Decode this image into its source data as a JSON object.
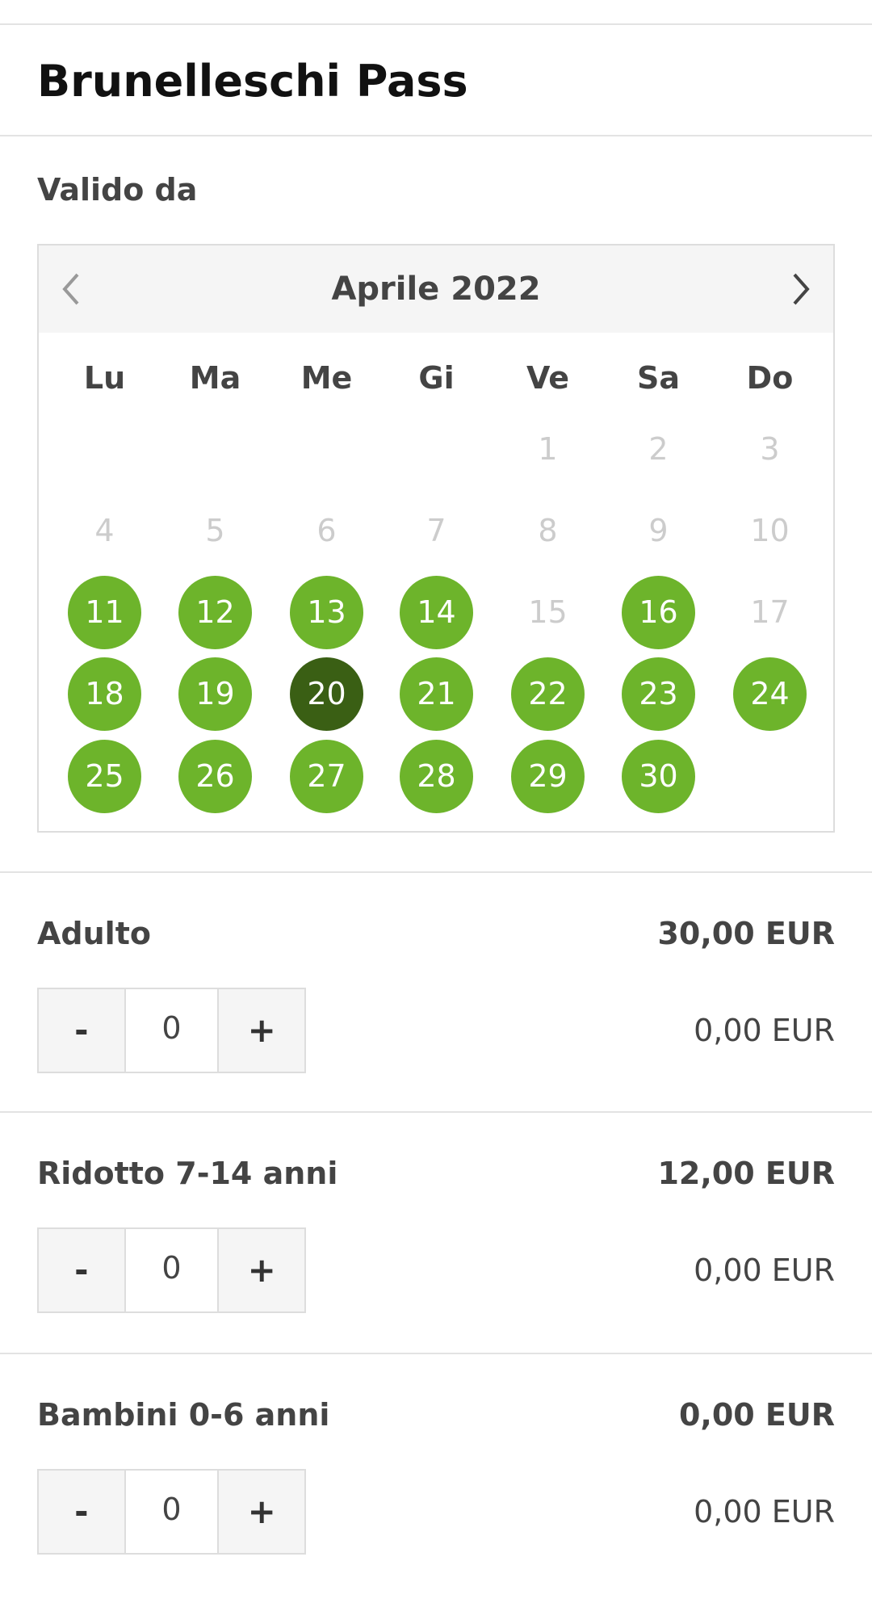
{
  "title": "Brunelleschi Pass",
  "valid_from_label": "Valido da",
  "calendar": {
    "month_label": "Aprile 2022",
    "weekdays": [
      "Lu",
      "Ma",
      "Me",
      "Gi",
      "Ve",
      "Sa",
      "Do"
    ],
    "first_weekday_offset": 4,
    "days": [
      {
        "d": "1",
        "s": "disabled"
      },
      {
        "d": "2",
        "s": "disabled"
      },
      {
        "d": "3",
        "s": "disabled"
      },
      {
        "d": "4",
        "s": "disabled"
      },
      {
        "d": "5",
        "s": "disabled"
      },
      {
        "d": "6",
        "s": "disabled"
      },
      {
        "d": "7",
        "s": "disabled"
      },
      {
        "d": "8",
        "s": "disabled"
      },
      {
        "d": "9",
        "s": "disabled"
      },
      {
        "d": "10",
        "s": "disabled"
      },
      {
        "d": "11",
        "s": "available"
      },
      {
        "d": "12",
        "s": "available"
      },
      {
        "d": "13",
        "s": "available"
      },
      {
        "d": "14",
        "s": "available"
      },
      {
        "d": "15",
        "s": "disabled"
      },
      {
        "d": "16",
        "s": "available"
      },
      {
        "d": "17",
        "s": "disabled"
      },
      {
        "d": "18",
        "s": "available"
      },
      {
        "d": "19",
        "s": "available"
      },
      {
        "d": "20",
        "s": "selected"
      },
      {
        "d": "21",
        "s": "available"
      },
      {
        "d": "22",
        "s": "available"
      },
      {
        "d": "23",
        "s": "available"
      },
      {
        "d": "24",
        "s": "available"
      },
      {
        "d": "25",
        "s": "available"
      },
      {
        "d": "26",
        "s": "available"
      },
      {
        "d": "27",
        "s": "available"
      },
      {
        "d": "28",
        "s": "available"
      },
      {
        "d": "29",
        "s": "available"
      },
      {
        "d": "30",
        "s": "available"
      }
    ],
    "colors": {
      "available": "#6db42b",
      "selected": "#3a5f14",
      "disabled": "#cccccc"
    }
  },
  "tickets": [
    {
      "name": "Adulto",
      "price": "30,00 EUR",
      "qty": "0",
      "subtotal": "0,00 EUR",
      "minus": "-",
      "plus": "+"
    },
    {
      "name": "Ridotto 7-14 anni",
      "price": "12,00 EUR",
      "qty": "0",
      "subtotal": "0,00 EUR",
      "minus": "-",
      "plus": "+"
    },
    {
      "name": "Bambini 0-6 anni",
      "price": "0,00 EUR",
      "qty": "0",
      "subtotal": "0,00 EUR",
      "minus": "-",
      "plus": "+"
    }
  ]
}
